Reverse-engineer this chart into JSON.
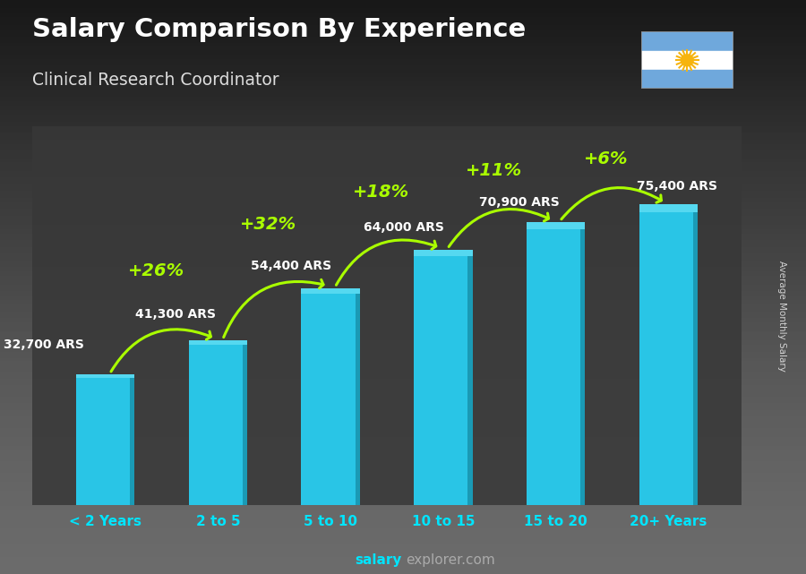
{
  "title": "Salary Comparison By Experience",
  "subtitle": "Clinical Research Coordinator",
  "categories": [
    "< 2 Years",
    "2 to 5",
    "5 to 10",
    "10 to 15",
    "15 to 20",
    "20+ Years"
  ],
  "values": [
    32700,
    41300,
    54400,
    64000,
    70900,
    75400
  ],
  "labels": [
    "32,700 ARS",
    "41,300 ARS",
    "54,400 ARS",
    "64,000 ARS",
    "70,900 ARS",
    "75,400 ARS"
  ],
  "pct_labels": [
    "+26%",
    "+32%",
    "+18%",
    "+11%",
    "+6%"
  ],
  "bar_color": "#29c5e6",
  "bar_color_dark": "#1a9ab5",
  "bar_color_top": "#55d8f0",
  "pct_color": "#aaff00",
  "label_color": "#ffffff",
  "title_color": "#ffffff",
  "subtitle_color": "#dddddd",
  "xlabel_color": "#00e5ff",
  "bg_color": "#3a3a3a",
  "footer_salary_color": "#00e5ff",
  "footer_explorer_color": "#aaaaaa",
  "ylabel_text": "Average Monthly Salary",
  "ylim": [
    0,
    95000
  ],
  "bar_width": 0.52
}
